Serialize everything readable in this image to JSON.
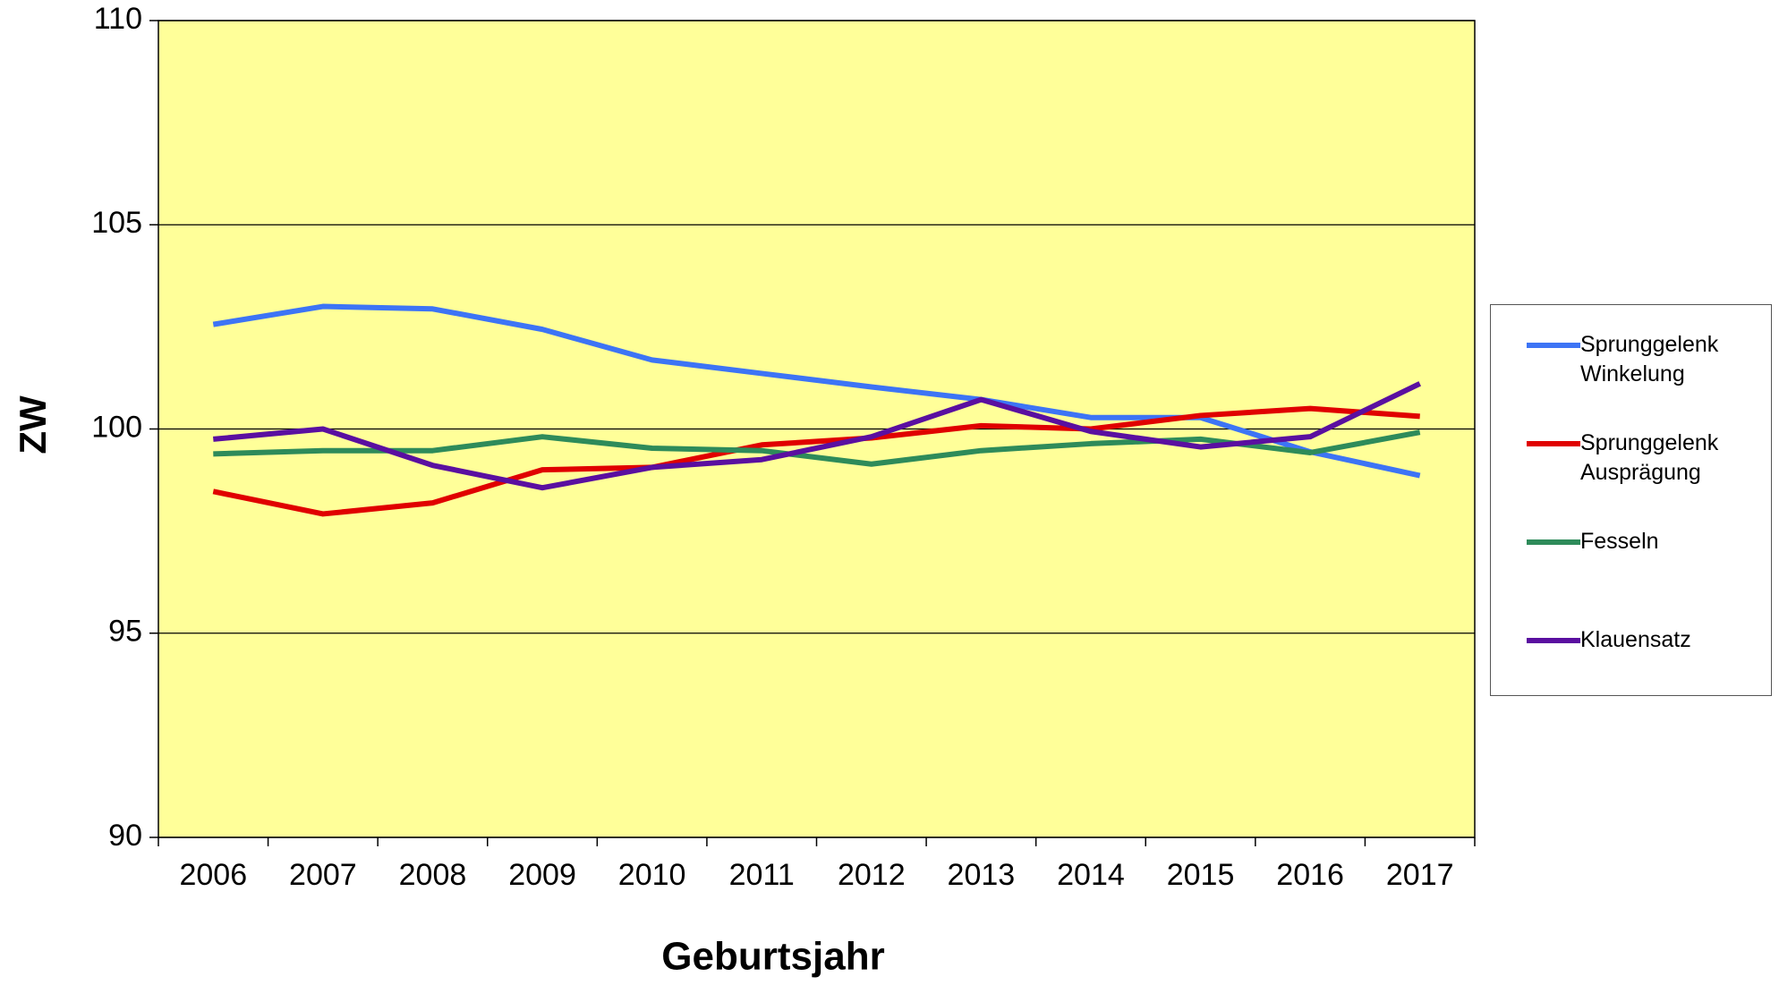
{
  "chart_data": {
    "type": "line",
    "y_label": "ZW",
    "x_label": "Geburtsjahr",
    "categories": [
      "2006",
      "2007",
      "2008",
      "2009",
      "2010",
      "2011",
      "2012",
      "2013",
      "2014",
      "2015",
      "2016",
      "2017"
    ],
    "series": [
      {
        "name": "Sprunggelenk Winkelung",
        "color": "#3d74f5",
        "values": [
          102.56,
          103.0,
          102.94,
          102.44,
          101.69,
          101.36,
          101.03,
          100.72,
          100.28,
          100.28,
          99.44,
          98.86
        ]
      },
      {
        "name": "Sprunggelenk Ausprägung",
        "color": "#e00000",
        "values": [
          98.47,
          97.92,
          98.19,
          99.0,
          99.06,
          99.61,
          99.78,
          100.08,
          100.0,
          100.33,
          100.5,
          100.31
        ]
      },
      {
        "name": "Fesseln",
        "color": "#2e8b5a",
        "values": [
          99.39,
          99.47,
          99.47,
          99.81,
          99.53,
          99.47,
          99.14,
          99.47,
          99.64,
          99.75,
          99.42,
          99.92
        ]
      },
      {
        "name": "Klauensatz",
        "color": "#5a0fa0",
        "values": [
          99.75,
          100.0,
          99.11,
          98.56,
          99.06,
          99.25,
          99.81,
          100.72,
          99.94,
          99.56,
          99.81,
          101.11
        ]
      }
    ],
    "ylim": [
      90,
      110
    ],
    "yticks": [
      90,
      95,
      100,
      105,
      110
    ],
    "grid": true,
    "plot_background": "#ffff99",
    "legend": "right"
  }
}
